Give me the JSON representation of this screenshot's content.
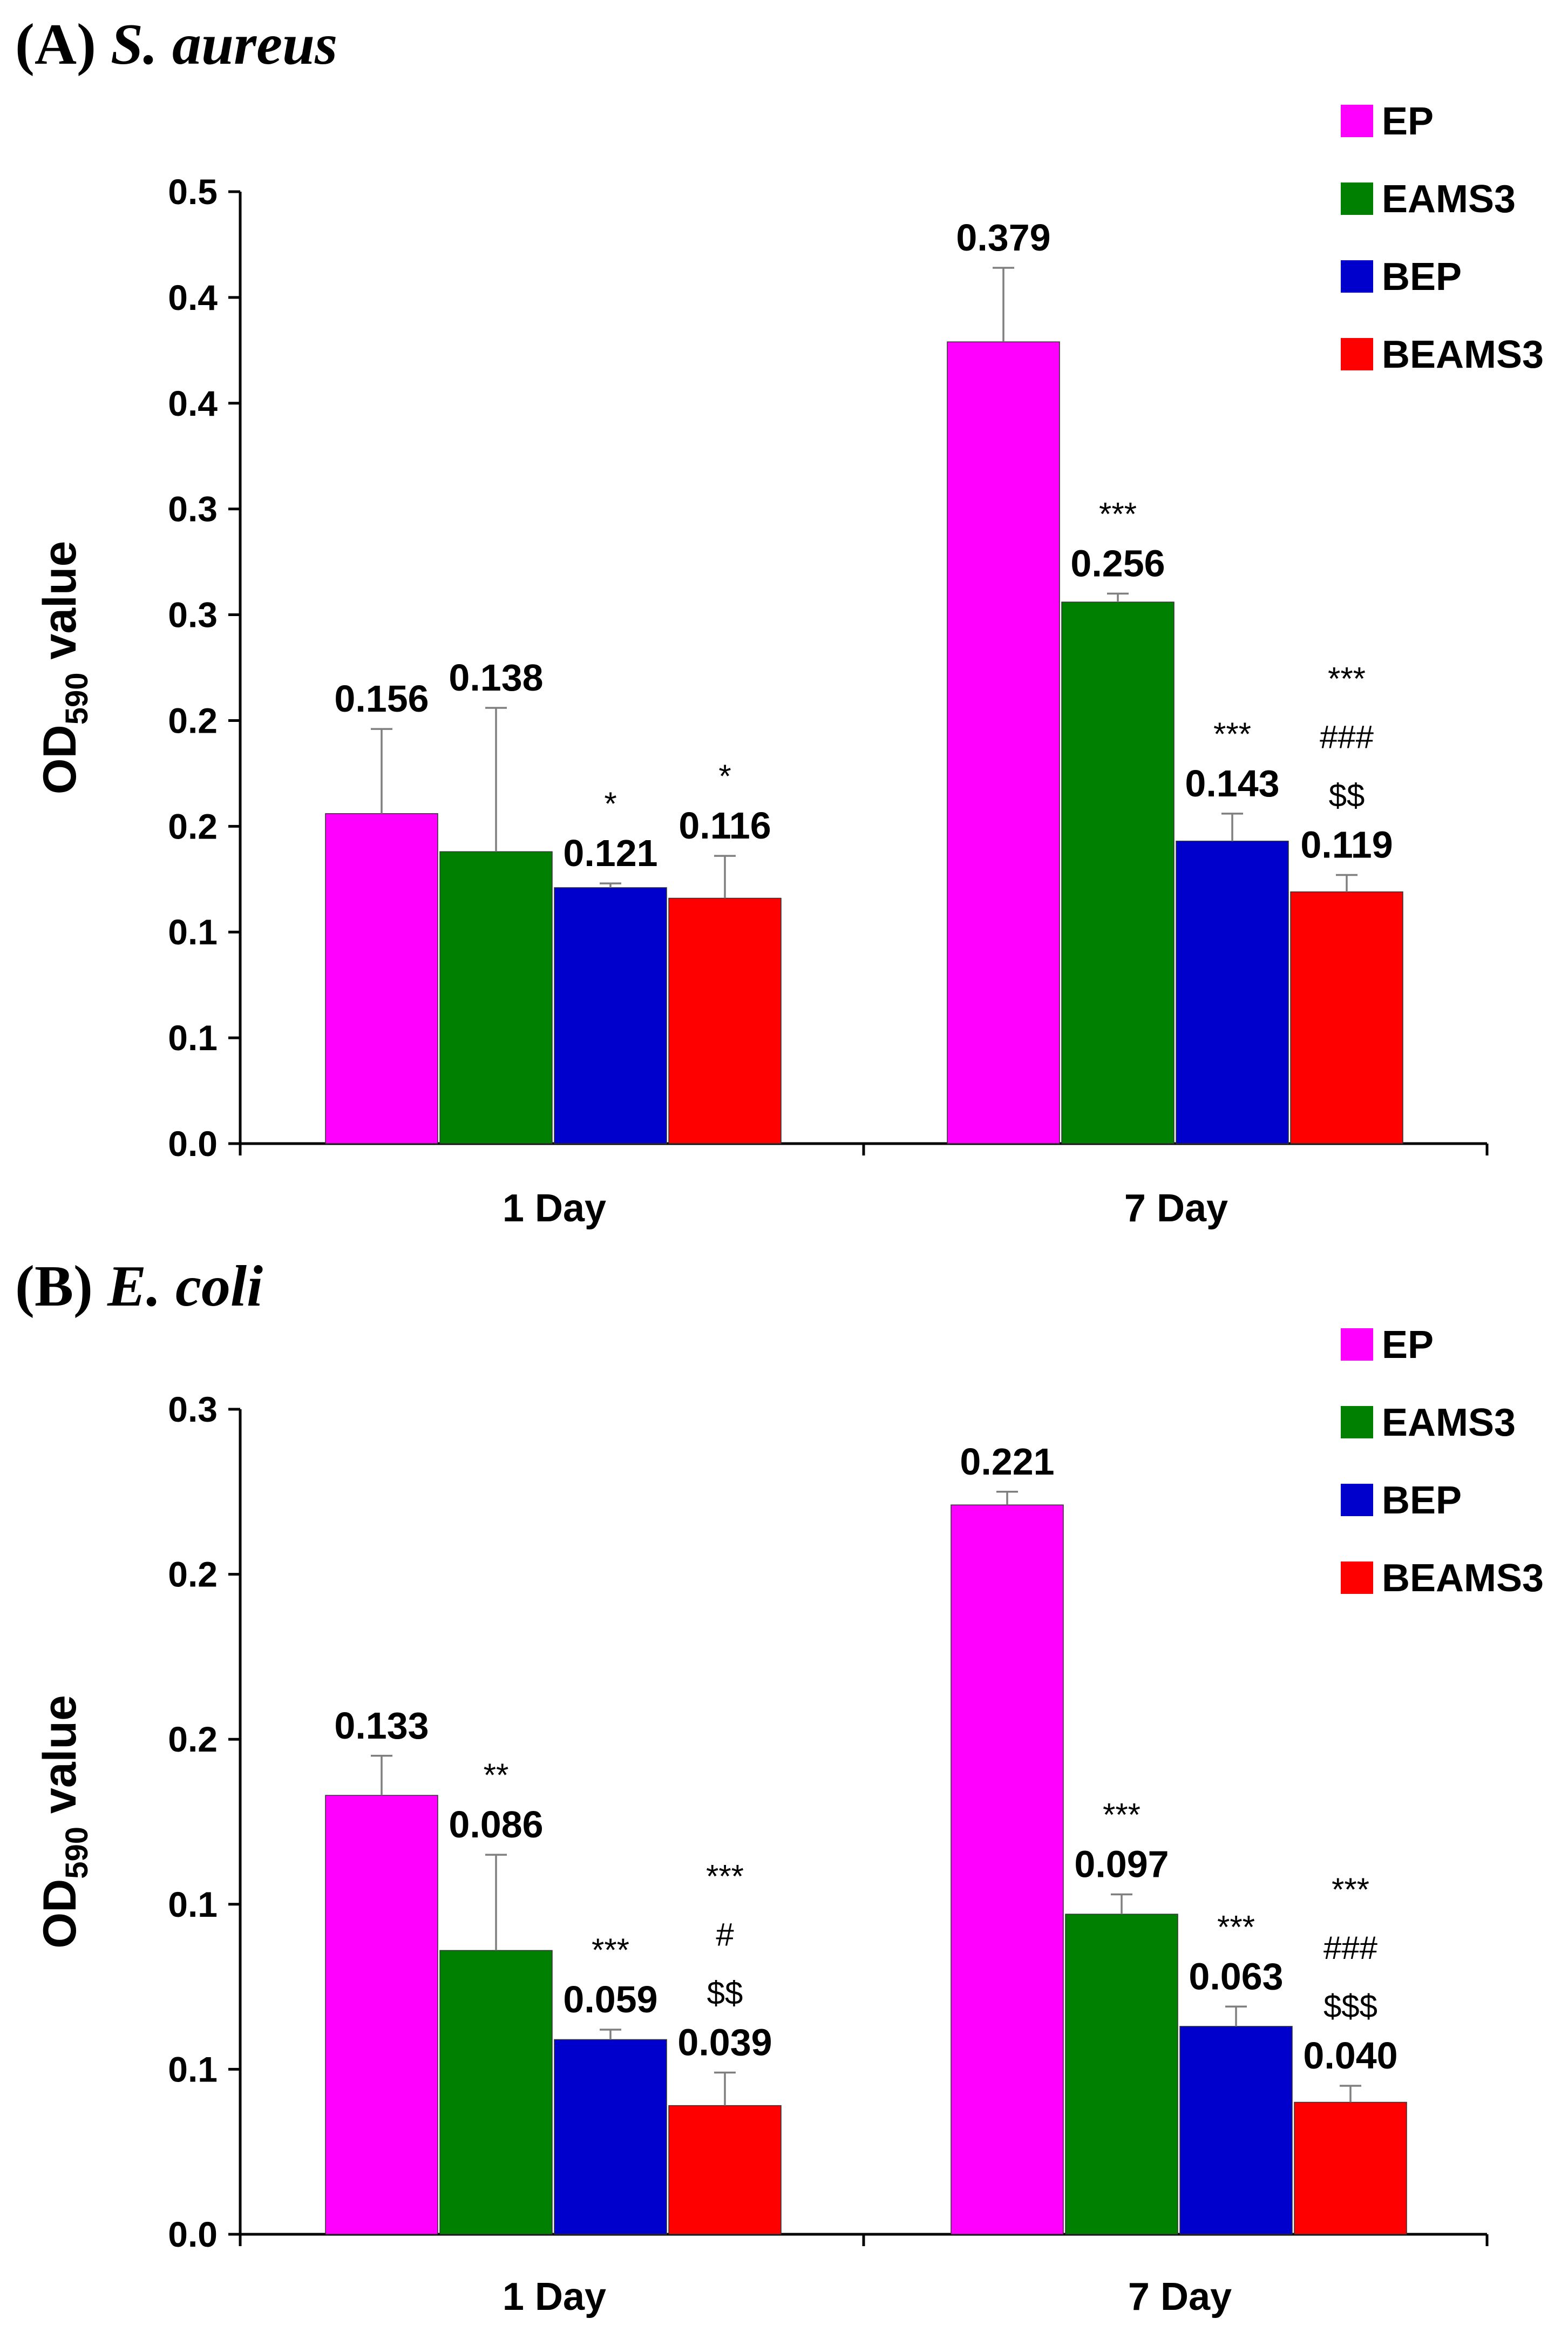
{
  "chart_data": [
    {
      "type": "bar",
      "panel_label": "(A)",
      "species": "S. aureus",
      "ylabel_main": "OD",
      "ylabel_sub": "590",
      "ylabel_tail": " value",
      "y_tick_labels": [
        "0.0",
        "0.1",
        "0.1",
        "0.2",
        "0.2",
        "0.3",
        "0.3",
        "0.4",
        "0.4",
        "0.5"
      ],
      "ylim": [
        0,
        0.45
      ],
      "categories": [
        "1 Day",
        "7 Day"
      ],
      "legend_position": "top-right",
      "series": [
        {
          "name": "EP",
          "color": "#FF00FF",
          "values": [
            0.156,
            0.379
          ],
          "errors": [
            0.04,
            0.035
          ],
          "labels": [
            "0.156",
            "0.379"
          ],
          "sig": [
            [],
            []
          ]
        },
        {
          "name": "EAMS3",
          "color": "#008000",
          "values": [
            0.138,
            0.256
          ],
          "errors": [
            0.068,
            0.004
          ],
          "labels": [
            "0.138",
            "0.256"
          ],
          "sig": [
            [],
            [
              "***"
            ]
          ]
        },
        {
          "name": "BEP",
          "color": "#0000CC",
          "values": [
            0.121,
            0.143
          ],
          "errors": [
            0.002,
            0.013
          ],
          "labels": [
            "0.121",
            "0.143"
          ],
          "sig": [
            [
              "*"
            ],
            [
              "***"
            ]
          ]
        },
        {
          "name": "BEAMS3",
          "color": "#FF0000",
          "values": [
            0.116,
            0.119
          ],
          "errors": [
            0.02,
            0.008
          ],
          "labels": [
            "0.116",
            "0.119"
          ],
          "sig": [
            [
              "*"
            ],
            [
              "***",
              "###",
              "$$"
            ]
          ]
        }
      ]
    },
    {
      "type": "bar",
      "panel_label": "(B)",
      "species": "E. coli",
      "ylabel_main": "OD",
      "ylabel_sub": "590",
      "ylabel_tail": " value",
      "y_tick_labels": [
        "0.0",
        "0.1",
        "0.1",
        "0.2",
        "0.2",
        "0.3"
      ],
      "ylim": [
        0,
        0.25
      ],
      "categories": [
        "1 Day",
        "7 Day"
      ],
      "legend_position": "top-right",
      "series": [
        {
          "name": "EP",
          "color": "#FF00FF",
          "values": [
            0.133,
            0.221
          ],
          "errors": [
            0.012,
            0.004
          ],
          "labels": [
            "0.133",
            "0.221"
          ],
          "sig": [
            [],
            []
          ]
        },
        {
          "name": "EAMS3",
          "color": "#008000",
          "values": [
            0.086,
            0.097
          ],
          "errors": [
            0.029,
            0.006
          ],
          "labels": [
            "0.086",
            "0.097"
          ],
          "sig": [
            [
              "**"
            ],
            [
              "***"
            ]
          ]
        },
        {
          "name": "BEP",
          "color": "#0000CC",
          "values": [
            0.059,
            0.063
          ],
          "errors": [
            0.003,
            0.006
          ],
          "labels": [
            "0.059",
            "0.063"
          ],
          "sig": [
            [
              "***"
            ],
            [
              "***"
            ]
          ]
        },
        {
          "name": "BEAMS3",
          "color": "#FF0000",
          "values": [
            0.039,
            0.04
          ],
          "errors": [
            0.01,
            0.005
          ],
          "labels": [
            "0.039",
            "0.040"
          ],
          "sig": [
            [
              "***",
              "#",
              "$$"
            ],
            [
              "***",
              "###",
              "$$$"
            ]
          ]
        }
      ]
    }
  ]
}
